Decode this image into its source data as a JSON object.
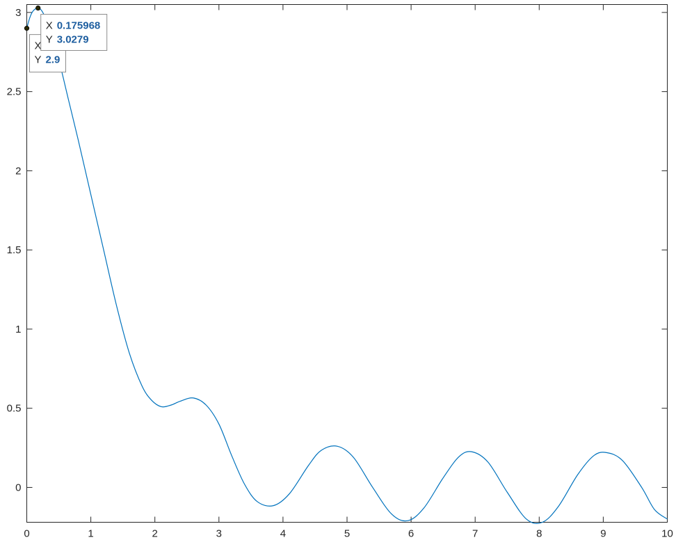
{
  "chart_data": {
    "type": "line",
    "title": "",
    "xlabel": "",
    "ylabel": "",
    "xlim": [
      0,
      10
    ],
    "ylim": [
      -0.22,
      3.05
    ],
    "xticks": [
      "0",
      "1",
      "2",
      "3",
      "4",
      "5",
      "6",
      "7",
      "8",
      "9",
      "10"
    ],
    "yticks": [
      "0",
      "0.5",
      "1",
      "1.5",
      "2",
      "2.5",
      "3"
    ],
    "grid": false,
    "series": [
      {
        "color": "#0072bd",
        "x": [
          0,
          0.05,
          0.1,
          0.176,
          0.25,
          0.35,
          0.5,
          0.65,
          0.8,
          1.0,
          1.2,
          1.4,
          1.6,
          1.8,
          1.95,
          2.1,
          2.25,
          2.4,
          2.6,
          2.8,
          3.0,
          3.2,
          3.4,
          3.6,
          3.85,
          4.1,
          4.4,
          4.6,
          4.85,
          5.1,
          5.4,
          5.7,
          5.95,
          6.2,
          6.5,
          6.75,
          6.95,
          7.2,
          7.5,
          7.8,
          8.05,
          8.3,
          8.6,
          8.85,
          9.05,
          9.3,
          9.6,
          9.8,
          10.0
        ],
        "y": [
          2.9,
          2.97,
          3.01,
          3.0279,
          3.0,
          2.9,
          2.7,
          2.45,
          2.2,
          1.85,
          1.5,
          1.15,
          0.85,
          0.64,
          0.55,
          0.51,
          0.52,
          0.545,
          0.565,
          0.52,
          0.4,
          0.2,
          0.02,
          -0.09,
          -0.115,
          -0.04,
          0.14,
          0.235,
          0.26,
          0.19,
          0.0,
          -0.17,
          -0.21,
          -0.13,
          0.06,
          0.195,
          0.225,
          0.16,
          -0.03,
          -0.2,
          -0.22,
          -0.12,
          0.08,
          0.2,
          0.22,
          0.17,
          0.0,
          -0.14,
          -0.2
        ]
      }
    ],
    "datatips": [
      {
        "x_label": "X",
        "x_value": "0.175968",
        "y_label": "Y",
        "y_value": "3.0279",
        "px": 0.175968,
        "py": 3.0279
      },
      {
        "x_label": "X",
        "x_value": "0",
        "y_label": "Y",
        "y_value": "2.9",
        "px": 0,
        "py": 2.9
      }
    ]
  }
}
